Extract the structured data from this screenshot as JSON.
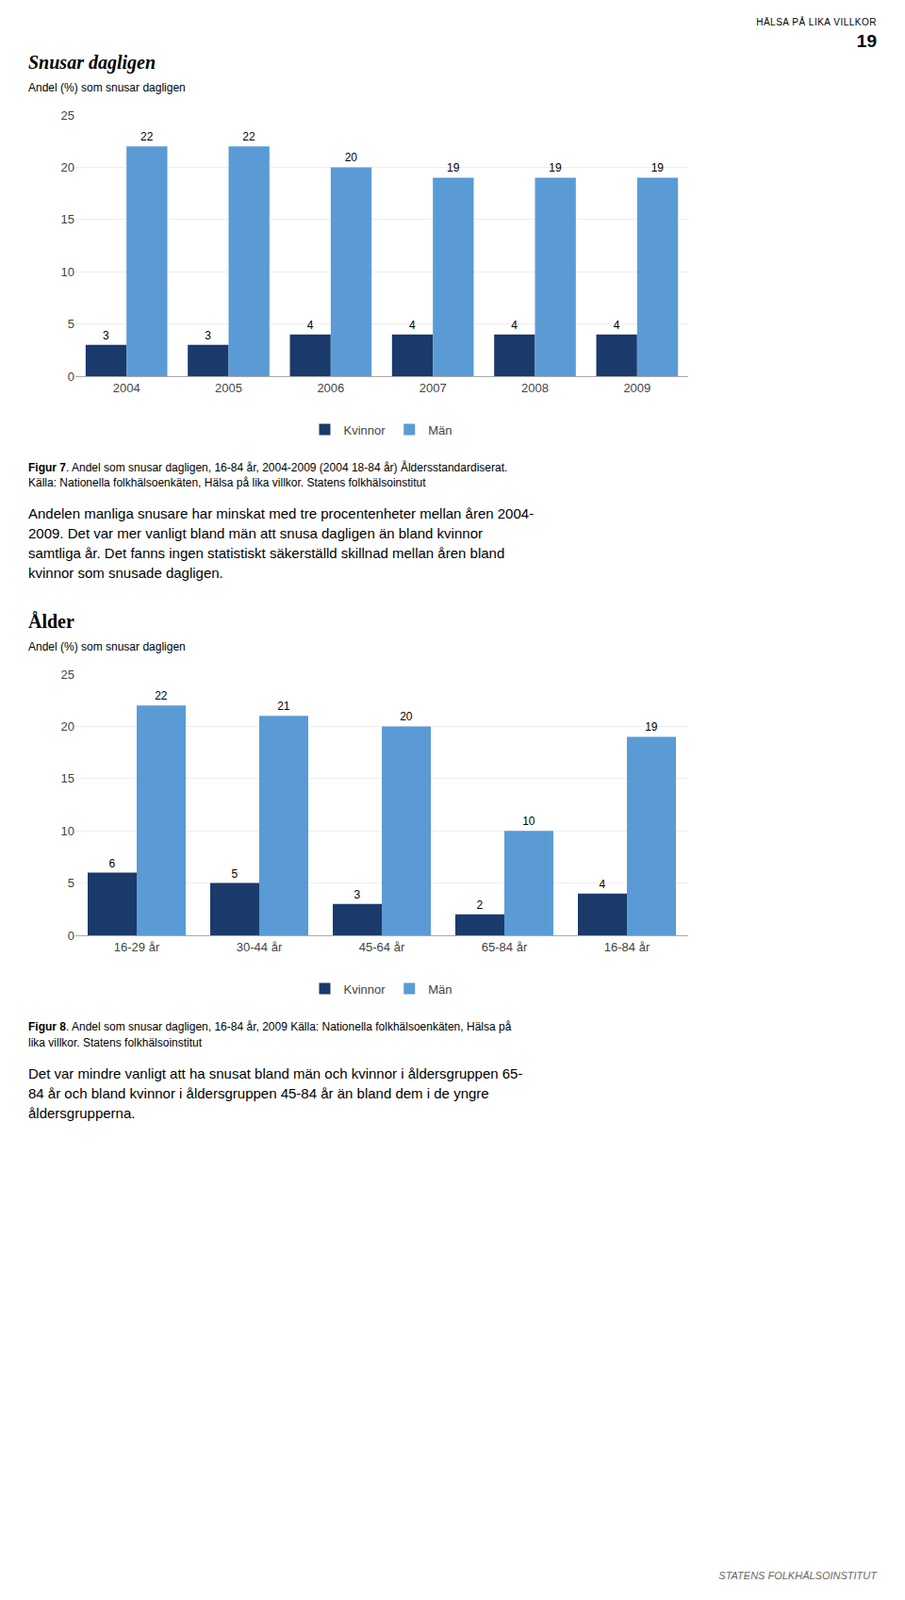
{
  "annotations": [
    "HÄLSA PÅ LIKA VILLKOR",
    "19",
    "STATENS FOLKHÄLSOINSTITUT"
  ],
  "chart_data": [
    {
      "type": "bar",
      "title": "Snusar dagligen",
      "ylabel": "Andel (%) som snusar dagligen",
      "categories": [
        "2004",
        "2005",
        "2006",
        "2007",
        "2008",
        "2009"
      ],
      "series": [
        {
          "name": "Kvinnor",
          "color": "#1a3a6b",
          "values": [
            3,
            3,
            4,
            4,
            4,
            4
          ]
        },
        {
          "name": "Män",
          "color": "#5b9bd5",
          "values": [
            22,
            22,
            20,
            19,
            19,
            19
          ]
        }
      ],
      "ylim": [
        0,
        25
      ],
      "yticks": [
        0,
        5,
        10,
        15,
        20,
        25
      ],
      "grid": true,
      "data_labels": true,
      "legend": "bottom",
      "annotations": [
        "Figur 7",
        ". Andel som snusar dagligen, 16-84 år, 2004-2009 (2004 18-84 år) Åldersstandardiserat.\nKälla: Nationella folkhälsoenkäten, Hälsa på lika villkor. Statens folkhälsoinstitut",
        "Andelen manliga snusare har minskat med tre procentenheter mellan åren 2004-\n2009. Det var mer vanligt bland män att snusa dagligen än bland kvinnor\nsamtliga år. Det fanns ingen statistiskt säkerställd skillnad mellan åren bland\nkvinnor som snusade dagligen."
      ]
    },
    {
      "type": "bar",
      "title": "Ålder",
      "ylabel": "Andel (%) som snusar dagligen",
      "categories": [
        "16-29 år",
        "30-44 år",
        "45-64 år",
        "65-84 år",
        "16-84 år"
      ],
      "series": [
        {
          "name": "Kvinnor",
          "color": "#1a3a6b",
          "values": [
            6,
            5,
            3,
            2,
            4
          ]
        },
        {
          "name": "Män",
          "color": "#5b9bd5",
          "values": [
            22,
            21,
            20,
            10,
            19
          ]
        }
      ],
      "ylim": [
        0,
        25
      ],
      "yticks": [
        0,
        5,
        10,
        15,
        20,
        25
      ],
      "grid": true,
      "data_labels": true,
      "legend": "bottom",
      "annotations": [
        "Figur 8",
        ". Andel som snusar dagligen, 16-84 år, 2009 Källa: Nationella folkhälsoenkäten, Hälsa på\nlika villkor. Statens folkhälsoinstitut",
        "Det var mindre vanligt att ha snusat bland män och kvinnor i åldersgruppen 65-\n84 år och bland kvinnor i åldersgruppen 45-84 år än bland dem i de yngre\nåldersgrupperna."
      ]
    }
  ]
}
